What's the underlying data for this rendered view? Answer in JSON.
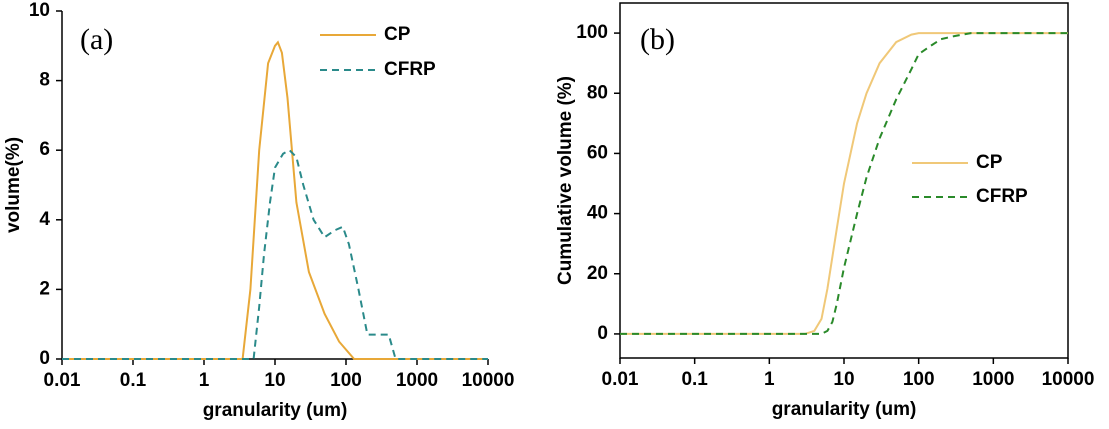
{
  "chart_data": [
    {
      "type": "line",
      "annotation": "(a)",
      "xlabel": "granularity  (um)",
      "ylabel": "volume(%)",
      "xlog": true,
      "xlim": [
        0.01,
        10000
      ],
      "xticks": [
        0.01,
        0.1,
        1,
        10,
        100,
        1000,
        10000
      ],
      "ylim": [
        0,
        10
      ],
      "yticks": [
        0,
        2,
        4,
        6,
        8,
        10
      ],
      "legend": "upper right",
      "series": [
        {
          "name": "CP",
          "color": "#e8a838",
          "dash": false,
          "x": [
            0.01,
            3.5,
            4.5,
            6,
            8,
            10,
            11,
            12.5,
            15,
            20,
            30,
            50,
            80,
            130,
            10000
          ],
          "values": [
            0,
            0,
            2,
            6,
            8.5,
            9.0,
            9.1,
            8.8,
            7.5,
            4.5,
            2.5,
            1.3,
            0.5,
            0,
            0
          ]
        },
        {
          "name": "CFRP",
          "color": "#2a8a8a",
          "dash": true,
          "x": [
            0.01,
            5,
            6,
            7,
            8.5,
            10,
            13,
            16,
            20,
            25,
            35,
            50,
            70,
            90,
            110,
            150,
            200,
            250,
            400,
            500,
            10000
          ],
          "values": [
            0,
            0,
            1.5,
            3,
            4.5,
            5.5,
            5.9,
            6,
            5.8,
            5,
            4,
            3.5,
            3.7,
            3.8,
            3.3,
            2,
            0.7,
            0.7,
            0.7,
            0,
            0
          ]
        }
      ]
    },
    {
      "type": "line",
      "annotation": "(b)",
      "xlabel": "granularity  (um)",
      "ylabel": "Cumulative volume  (%)",
      "xlog": true,
      "xlim": [
        0.01,
        10000
      ],
      "xticks": [
        0.01,
        0.1,
        1,
        10,
        100,
        1000,
        10000
      ],
      "ylim": [
        -8,
        110
      ],
      "yticks": [
        0,
        20,
        40,
        60,
        80,
        100
      ],
      "legend": "center right",
      "series": [
        {
          "name": "CP",
          "color": "#f0c878",
          "dash": false,
          "x": [
            0.01,
            3,
            4,
            5,
            6,
            8,
            10,
            15,
            20,
            30,
            50,
            80,
            100,
            10000
          ],
          "values": [
            0,
            0,
            1,
            5,
            15,
            35,
            50,
            70,
            80,
            90,
            97,
            99.5,
            100,
            100
          ]
        },
        {
          "name": "CFRP",
          "color": "#2a8a2a",
          "dash": true,
          "x": [
            0.01,
            5,
            6,
            7,
            8,
            10,
            15,
            20,
            30,
            50,
            80,
            100,
            150,
            200,
            300,
            500,
            10000
          ],
          "values": [
            0,
            0,
            1,
            4,
            10,
            22,
            40,
            52,
            65,
            78,
            88,
            93,
            96,
            98,
            99,
            100,
            100
          ]
        }
      ]
    }
  ]
}
